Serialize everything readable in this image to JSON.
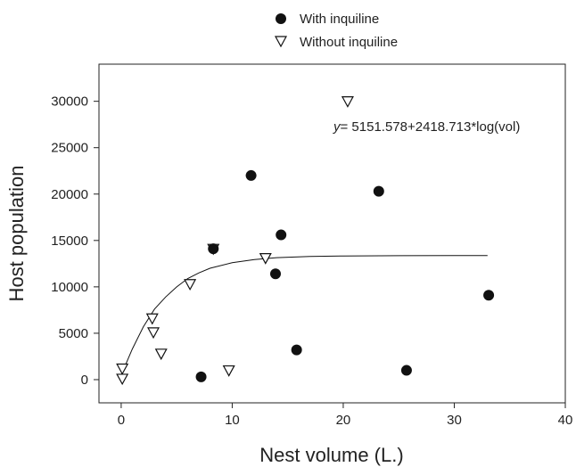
{
  "chart_data": {
    "type": "scatter",
    "xlabel": "Nest volume (L.)",
    "ylabel": "Host population",
    "xlim": [
      -2,
      40
    ],
    "ylim": [
      -2500,
      34000
    ],
    "x_ticks": [
      0,
      10,
      20,
      30,
      40
    ],
    "y_ticks": [
      0,
      5000,
      10000,
      15000,
      20000,
      25000,
      30000
    ],
    "x_tick_labels": [
      "0",
      "10",
      "20",
      "30",
      "40"
    ],
    "y_tick_labels": [
      "0",
      "5000",
      "10000",
      "15000",
      "20000",
      "25000",
      "30000"
    ],
    "legend_position": "top-center (above plot)",
    "grid": false,
    "series": [
      {
        "name": "With inquiline",
        "marker": "filled-circle",
        "color": "#111111",
        "points": [
          {
            "x": 7.2,
            "y": 300
          },
          {
            "x": 8.3,
            "y": 14100
          },
          {
            "x": 11.7,
            "y": 22000
          },
          {
            "x": 13.9,
            "y": 11400
          },
          {
            "x": 14.4,
            "y": 15600
          },
          {
            "x": 15.8,
            "y": 3200
          },
          {
            "x": 23.2,
            "y": 20300
          },
          {
            "x": 25.7,
            "y": 1000
          },
          {
            "x": 33.1,
            "y": 9100
          }
        ]
      },
      {
        "name": "Without inquiline",
        "marker": "open-down-triangle",
        "color": "#111111",
        "points": [
          {
            "x": 0.1,
            "y": 1200
          },
          {
            "x": 0.1,
            "y": 100
          },
          {
            "x": 2.8,
            "y": 6600
          },
          {
            "x": 2.9,
            "y": 5100
          },
          {
            "x": 3.6,
            "y": 2800
          },
          {
            "x": 6.2,
            "y": 10300
          },
          {
            "x": 8.3,
            "y": 14100
          },
          {
            "x": 9.7,
            "y": 1000
          },
          {
            "x": 13.0,
            "y": 13100
          },
          {
            "x": 20.4,
            "y": 30000
          }
        ]
      }
    ],
    "fit_curve": {
      "x": [
        0,
        1,
        2,
        3,
        4,
        5,
        6,
        7,
        8,
        10,
        12,
        14,
        17,
        20,
        25,
        30,
        33
      ],
      "y": [
        500,
        3300,
        5700,
        7600,
        8900,
        10000,
        10900,
        11500,
        12000,
        12600,
        12950,
        13150,
        13280,
        13330,
        13360,
        13370,
        13380
      ]
    },
    "annotation": {
      "var": "y",
      "rest": "= 5151.578+2418.713*log(vol)"
    }
  }
}
